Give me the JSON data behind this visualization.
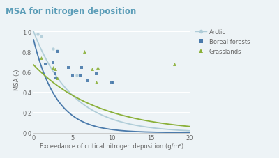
{
  "title": "MSA for nitrogen deposition",
  "title_color": "#5b9db8",
  "title_bg_color": "#cde3ed",
  "ylabel": "MSA (-)",
  "xlabel": "Exceedance of critical nitrogen deposition (g/m²)",
  "xlim": [
    0,
    20
  ],
  "ylim": [
    0.0,
    1.05
  ],
  "yticks": [
    0.0,
    0.2,
    0.4,
    0.6,
    0.8,
    1.0
  ],
  "xticks": [
    0,
    5,
    10,
    15,
    20
  ],
  "bg_color": "#edf3f6",
  "plot_bg_color": "#edf3f6",
  "grid_color": "#ffffff",
  "arctic_scatter_x": [
    0.5,
    1.0,
    2.5,
    3.0,
    5.5,
    6.0
  ],
  "arctic_scatter_y": [
    0.97,
    0.95,
    0.83,
    0.81,
    0.57,
    0.57
  ],
  "arctic_color": "#b0cdd8",
  "boreal_scatter_x": [
    1.5,
    2.5,
    2.8,
    2.9,
    3.0,
    4.5,
    5.0,
    6.0,
    6.2,
    7.0,
    8.0,
    10.0,
    10.2
  ],
  "boreal_scatter_y": [
    0.68,
    0.69,
    0.58,
    0.54,
    0.8,
    0.64,
    0.56,
    0.56,
    0.64,
    0.51,
    0.58,
    0.49,
    0.49
  ],
  "boreal_color": "#4a7aab",
  "grass_scatter_x": [
    1.0,
    2.5,
    2.8,
    3.0,
    6.5,
    7.5,
    8.0,
    8.2,
    18.0
  ],
  "grass_scatter_y": [
    0.74,
    0.64,
    0.63,
    0.54,
    0.8,
    0.63,
    0.5,
    0.64,
    0.68
  ],
  "grass_color": "#8ab038",
  "arctic_curve_x0": 0.0,
  "arctic_curve_y0": 1.0,
  "arctic_curve_k": 0.02,
  "boreal_curve_x0": 0.0,
  "boreal_curve_y0": 0.92,
  "boreal_curve_k": 0.034,
  "grass_curve_x0": 0.0,
  "grass_curve_y0": 0.67,
  "grass_curve_k": 0.012,
  "legend_labels": [
    "Arctic",
    "Boreal forests",
    "Grasslands"
  ]
}
